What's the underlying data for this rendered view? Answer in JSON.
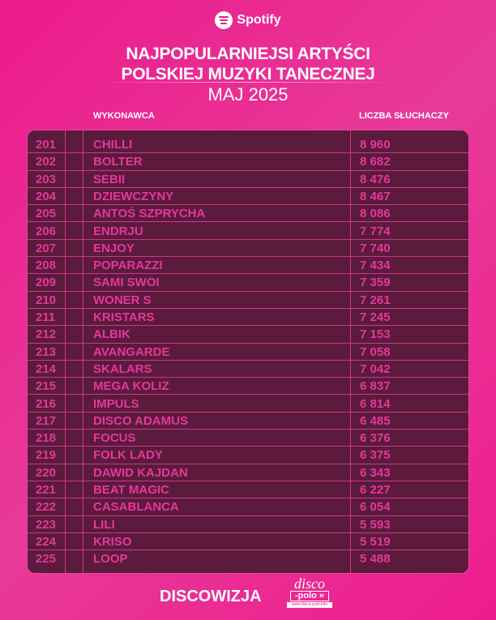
{
  "brand": {
    "name": "Spotify",
    "icon": "spotify-icon"
  },
  "title_lines": [
    "NAJPOPULARNIEJSI ARTYŚCI",
    "POLSKIEJ MUZYKI TANECZNEJ"
  ],
  "subtitle": "MAJ 2025",
  "headers": {
    "artist": "WYKONAWCA",
    "listeners": "LICZBA SŁUCHACZY"
  },
  "rows": [
    {
      "rank": "201",
      "artist": "CHILLI",
      "listeners": "8 960"
    },
    {
      "rank": "202",
      "artist": "BOLTER",
      "listeners": "8 682"
    },
    {
      "rank": "203",
      "artist": "SEBII",
      "listeners": "8 476"
    },
    {
      "rank": "204",
      "artist": "DZIEWCZYNY",
      "listeners": "8 467"
    },
    {
      "rank": "205",
      "artist": "ANTOŚ SZPRYCHA",
      "listeners": "8 086"
    },
    {
      "rank": "206",
      "artist": "ENDRJU",
      "listeners": "7 774"
    },
    {
      "rank": "207",
      "artist": "ENJOY",
      "listeners": "7 740"
    },
    {
      "rank": "208",
      "artist": "POPARAZZI",
      "listeners": "7 434"
    },
    {
      "rank": "209",
      "artist": "SAMI SWOI",
      "listeners": "7 359"
    },
    {
      "rank": "210",
      "artist": "WONER S",
      "listeners": "7 261"
    },
    {
      "rank": "211",
      "artist": "KRISTARS",
      "listeners": "7 245"
    },
    {
      "rank": "212",
      "artist": "ALBIK",
      "listeners": "7 153"
    },
    {
      "rank": "213",
      "artist": "AVANGARDE",
      "listeners": "7 058"
    },
    {
      "rank": "214",
      "artist": "SKALARS",
      "listeners": "7 042"
    },
    {
      "rank": "215",
      "artist": "MEGA KOLIZ",
      "listeners": "6 837"
    },
    {
      "rank": "216",
      "artist": "IMPULS",
      "listeners": "6 814"
    },
    {
      "rank": "217",
      "artist": "DISCO ADAMUS",
      "listeners": "6 485"
    },
    {
      "rank": "218",
      "artist": "FOCUS",
      "listeners": "6 376"
    },
    {
      "rank": "219",
      "artist": "FOLK LADY",
      "listeners": "6 375"
    },
    {
      "rank": "220",
      "artist": "DAWID KAJDAN",
      "listeners": "6 343"
    },
    {
      "rank": "221",
      "artist": "BEAT MAGIC",
      "listeners": "6 227"
    },
    {
      "rank": "222",
      "artist": "CASABLANCA",
      "listeners": "6 054"
    },
    {
      "rank": "223",
      "artist": "LILI",
      "listeners": "5 593"
    },
    {
      "rank": "224",
      "artist": "KRISO",
      "listeners": "5 519"
    },
    {
      "rank": "225",
      "artist": "LOOP",
      "listeners": "5 488"
    }
  ],
  "footer": {
    "left": "DISCOWIZJA",
    "logo_top": "disco",
    "logo_mid": "-polo »",
    "logo_url": "www.disco-polo.info"
  },
  "colors": {
    "background": "#ec1a8c",
    "table": "#5c1a3d",
    "row_text": "#e5379a"
  }
}
